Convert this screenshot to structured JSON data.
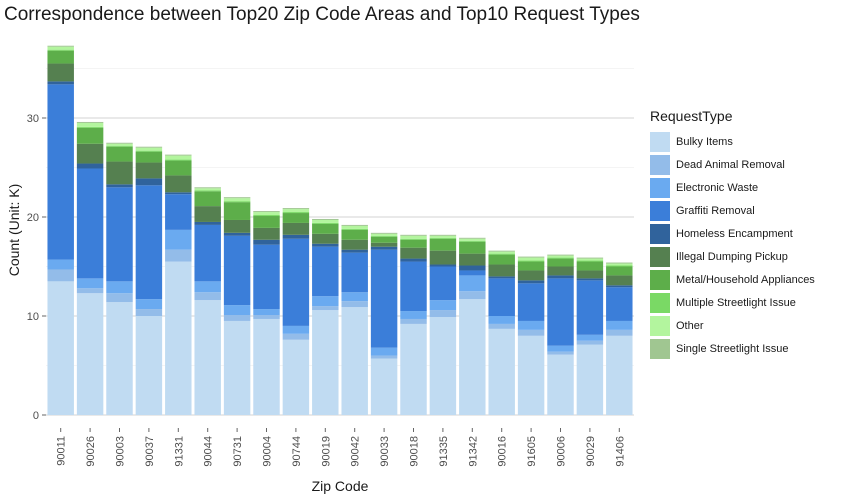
{
  "chart_data": {
    "type": "bar",
    "stacked": true,
    "title": "Correspondence between Top20 Zip Code Areas and Top10 Request Types",
    "xlabel": "Zip Code",
    "ylabel": "Count (Unit: K)",
    "ylim": [
      0,
      38
    ],
    "yticks": [
      0,
      10,
      20,
      30
    ],
    "grid": true,
    "legend_position": "right",
    "legend_title": "RequestType",
    "categories": [
      "90011",
      "90026",
      "90003",
      "90037",
      "91331",
      "90044",
      "90731",
      "90004",
      "90744",
      "90019",
      "90042",
      "90033",
      "90018",
      "91335",
      "91342",
      "90016",
      "91605",
      "90006",
      "90029",
      "91406"
    ],
    "series": [
      {
        "name": "Bulky Items",
        "color": "#c0dbf2",
        "values": [
          13.5,
          12.3,
          11.4,
          10.0,
          15.5,
          11.6,
          9.5,
          9.7,
          7.6,
          10.6,
          10.9,
          5.7,
          9.2,
          9.9,
          11.7,
          8.7,
          8.0,
          6.1,
          7.1,
          8.0
        ]
      },
      {
        "name": "Dead Animal Removal",
        "color": "#93bce9",
        "values": [
          1.2,
          0.5,
          0.9,
          0.7,
          1.2,
          0.8,
          0.6,
          0.4,
          0.6,
          0.4,
          0.6,
          0.3,
          0.5,
          0.7,
          0.8,
          0.5,
          0.6,
          0.3,
          0.4,
          0.6
        ]
      },
      {
        "name": "Electronic Waste",
        "color": "#6aaaf0",
        "values": [
          1.0,
          1.0,
          1.2,
          1.0,
          2.0,
          1.1,
          1.0,
          0.6,
          0.8,
          1.0,
          0.9,
          0.8,
          0.8,
          1.0,
          1.6,
          0.8,
          0.9,
          0.6,
          0.6,
          0.9
        ]
      },
      {
        "name": "Graffiti Removal",
        "color": "#3b7ed9",
        "values": [
          17.7,
          11.1,
          9.5,
          11.5,
          3.6,
          5.7,
          7.0,
          6.5,
          8.8,
          5.0,
          4.0,
          9.9,
          5.0,
          3.4,
          0.5,
          3.8,
          3.8,
          6.8,
          5.5,
          3.4
        ]
      },
      {
        "name": "Homeless Encampment",
        "color": "#30639c",
        "values": [
          0.3,
          0.5,
          0.3,
          0.7,
          0.2,
          0.3,
          0.3,
          0.5,
          0.4,
          0.3,
          0.3,
          0.3,
          0.3,
          0.2,
          0.5,
          0.2,
          0.3,
          0.3,
          0.2,
          0.2
        ]
      },
      {
        "name": "Illegal Dumping Pickup",
        "color": "#558050",
        "values": [
          1.8,
          2.0,
          2.3,
          1.6,
          1.7,
          1.6,
          1.3,
          1.2,
          1.2,
          1.0,
          1.0,
          0.4,
          1.1,
          1.4,
          1.2,
          1.2,
          1.0,
          0.9,
          0.8,
          1.0
        ]
      },
      {
        "name": "Metal/Household Appliances",
        "color": "#5dae4a",
        "values": [
          1.3,
          1.6,
          1.5,
          1.1,
          1.5,
          1.5,
          1.8,
          1.2,
          1.0,
          1.0,
          1.0,
          0.6,
          0.8,
          1.2,
          1.2,
          1.0,
          0.9,
          0.8,
          0.9,
          0.9
        ]
      },
      {
        "name": "Multiple Streetlight Issue",
        "color": "#7ad965",
        "values": [
          0.1,
          0.1,
          0.1,
          0.1,
          0.1,
          0.1,
          0.1,
          0.1,
          0.1,
          0.1,
          0.1,
          0.1,
          0.1,
          0.1,
          0.1,
          0.1,
          0.1,
          0.1,
          0.1,
          0.1
        ]
      },
      {
        "name": "Other",
        "color": "#b3f59e",
        "values": [
          0.3,
          0.4,
          0.2,
          0.3,
          0.4,
          0.2,
          0.3,
          0.3,
          0.3,
          0.3,
          0.3,
          0.2,
          0.3,
          0.2,
          0.2,
          0.2,
          0.3,
          0.2,
          0.2,
          0.2
        ]
      },
      {
        "name": "Single Streetlight Issue",
        "color": "#a0c691",
        "values": [
          0.1,
          0.1,
          0.1,
          0.1,
          0.1,
          0.1,
          0.1,
          0.1,
          0.1,
          0.1,
          0.1,
          0.1,
          0.1,
          0.1,
          0.1,
          0.1,
          0.1,
          0.1,
          0.1,
          0.1
        ]
      }
    ]
  }
}
